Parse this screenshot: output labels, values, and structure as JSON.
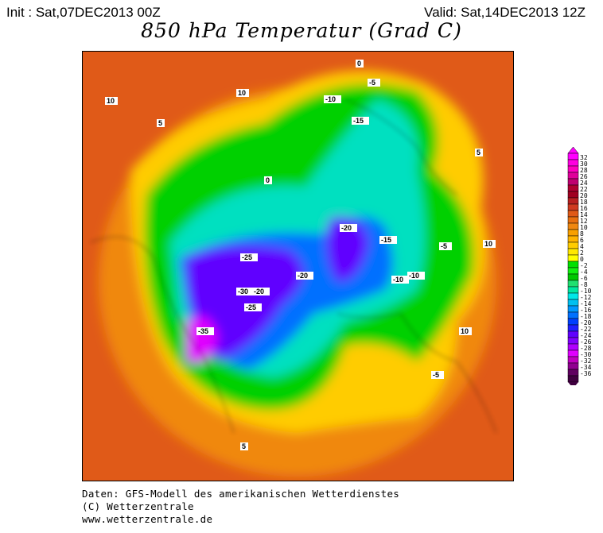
{
  "header": {
    "init": "Init : Sat,07DEC2013 00Z",
    "valid": "Valid: Sat,14DEC2013 12Z",
    "title": "850 hPa Temperatur (Grad C)"
  },
  "legend": {
    "labels": [
      "32",
      "30",
      "28",
      "26",
      "24",
      "22",
      "20",
      "18",
      "16",
      "14",
      "12",
      "10",
      "8",
      "6",
      "4",
      "2",
      "0",
      "-2",
      "-4",
      "-6",
      "-8",
      "-10",
      "-12",
      "-14",
      "-16",
      "-18",
      "-20",
      "-22",
      "-24",
      "-26",
      "-28",
      "-30",
      "-32",
      "-34",
      "-36"
    ],
    "colors": [
      "#ff00ff",
      "#ff00e0",
      "#ff00c0",
      "#e0009a",
      "#c00070",
      "#b00030",
      "#a00020",
      "#b82020",
      "#d03a20",
      "#e05a18",
      "#e87010",
      "#f08810",
      "#f8a000",
      "#ffb400",
      "#ffcc00",
      "#ffe800",
      "#ffff00",
      "#00e000",
      "#10f010",
      "#00c800",
      "#20e070",
      "#00e8a0",
      "#00e8e8",
      "#00c0f0",
      "#0098ff",
      "#0070ff",
      "#0040ff",
      "#2020ff",
      "#6000ff",
      "#8000ff",
      "#b000ff",
      "#e000ff",
      "#c000c0",
      "#900090",
      "#600060",
      "#400040"
    ]
  },
  "map_labels": [
    {
      "t": "10"
    },
    {
      "t": "10"
    },
    {
      "t": "5"
    },
    {
      "t": "0"
    },
    {
      "t": "-5"
    },
    {
      "t": "-10"
    },
    {
      "t": "-15"
    },
    {
      "t": "-20"
    },
    {
      "t": "-25"
    },
    {
      "t": "-30"
    },
    {
      "t": "-35"
    },
    {
      "t": "-20"
    },
    {
      "t": "-15"
    },
    {
      "t": "-10"
    },
    {
      "t": "-5"
    },
    {
      "t": "0"
    },
    {
      "t": "5"
    },
    {
      "t": "10"
    },
    {
      "t": "-25"
    },
    {
      "t": "-20"
    },
    {
      "t": "-10"
    },
    {
      "t": "-5"
    },
    {
      "t": "5"
    },
    {
      "t": "10"
    }
  ],
  "footer": {
    "line1": "Daten: GFS-Modell des amerikanischen Wetterdienstes",
    "line2": "(C) Wetterzentrale",
    "line3": "www.wetterzentrale.de"
  }
}
